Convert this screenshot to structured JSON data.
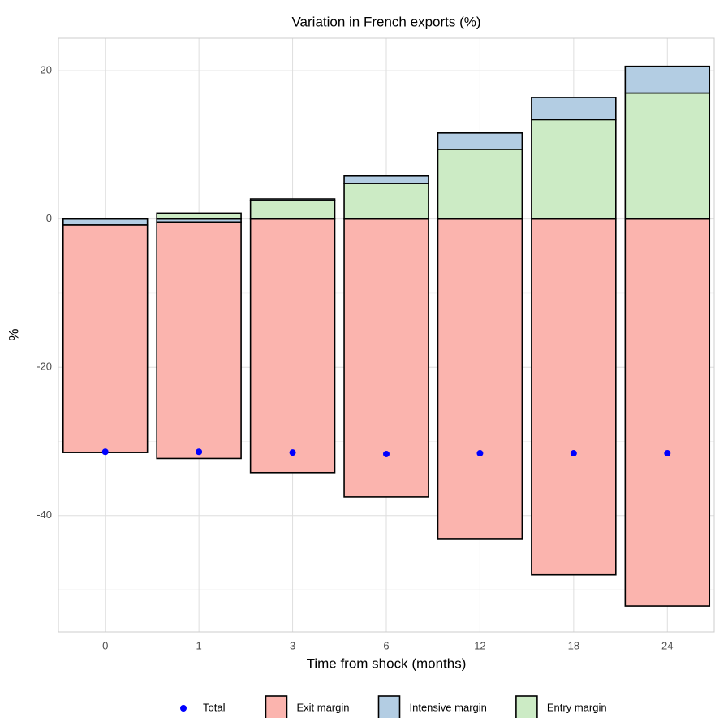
{
  "chart_data": {
    "type": "stacked_bar",
    "title": "Variation in French exports (%)",
    "x_label": "Time from shock (months)",
    "y_label": "%",
    "categories": [
      "0",
      "1",
      "3",
      "6",
      "12",
      "18",
      "24"
    ],
    "series": [
      {
        "name": "Exit margin",
        "color": "#fbb4ae",
        "values": [
          -30.7,
          -31.9,
          -34.2,
          -37.5,
          -43.2,
          -48.0,
          -52.2
        ]
      },
      {
        "name": "Intensive margin",
        "color": "#b3cde3",
        "values": [
          -0.8,
          -0.4,
          0.2,
          1.0,
          2.2,
          3.0,
          3.6
        ]
      },
      {
        "name": "Entry margin",
        "color": "#ccebc5",
        "values": [
          0,
          0.8,
          2.5,
          4.8,
          9.4,
          13.4,
          17.0
        ]
      }
    ],
    "points": {
      "name": "Total",
      "color": "#0000ff",
      "values": [
        -31.4,
        -31.4,
        -31.5,
        -31.7,
        -31.6,
        -31.6,
        -31.6
      ]
    },
    "ylim": [
      -55.7,
      24.4
    ],
    "yticks": [
      -40,
      -20,
      0,
      20
    ],
    "grid": true,
    "minor_grid": true,
    "legend_position": "bottom"
  }
}
